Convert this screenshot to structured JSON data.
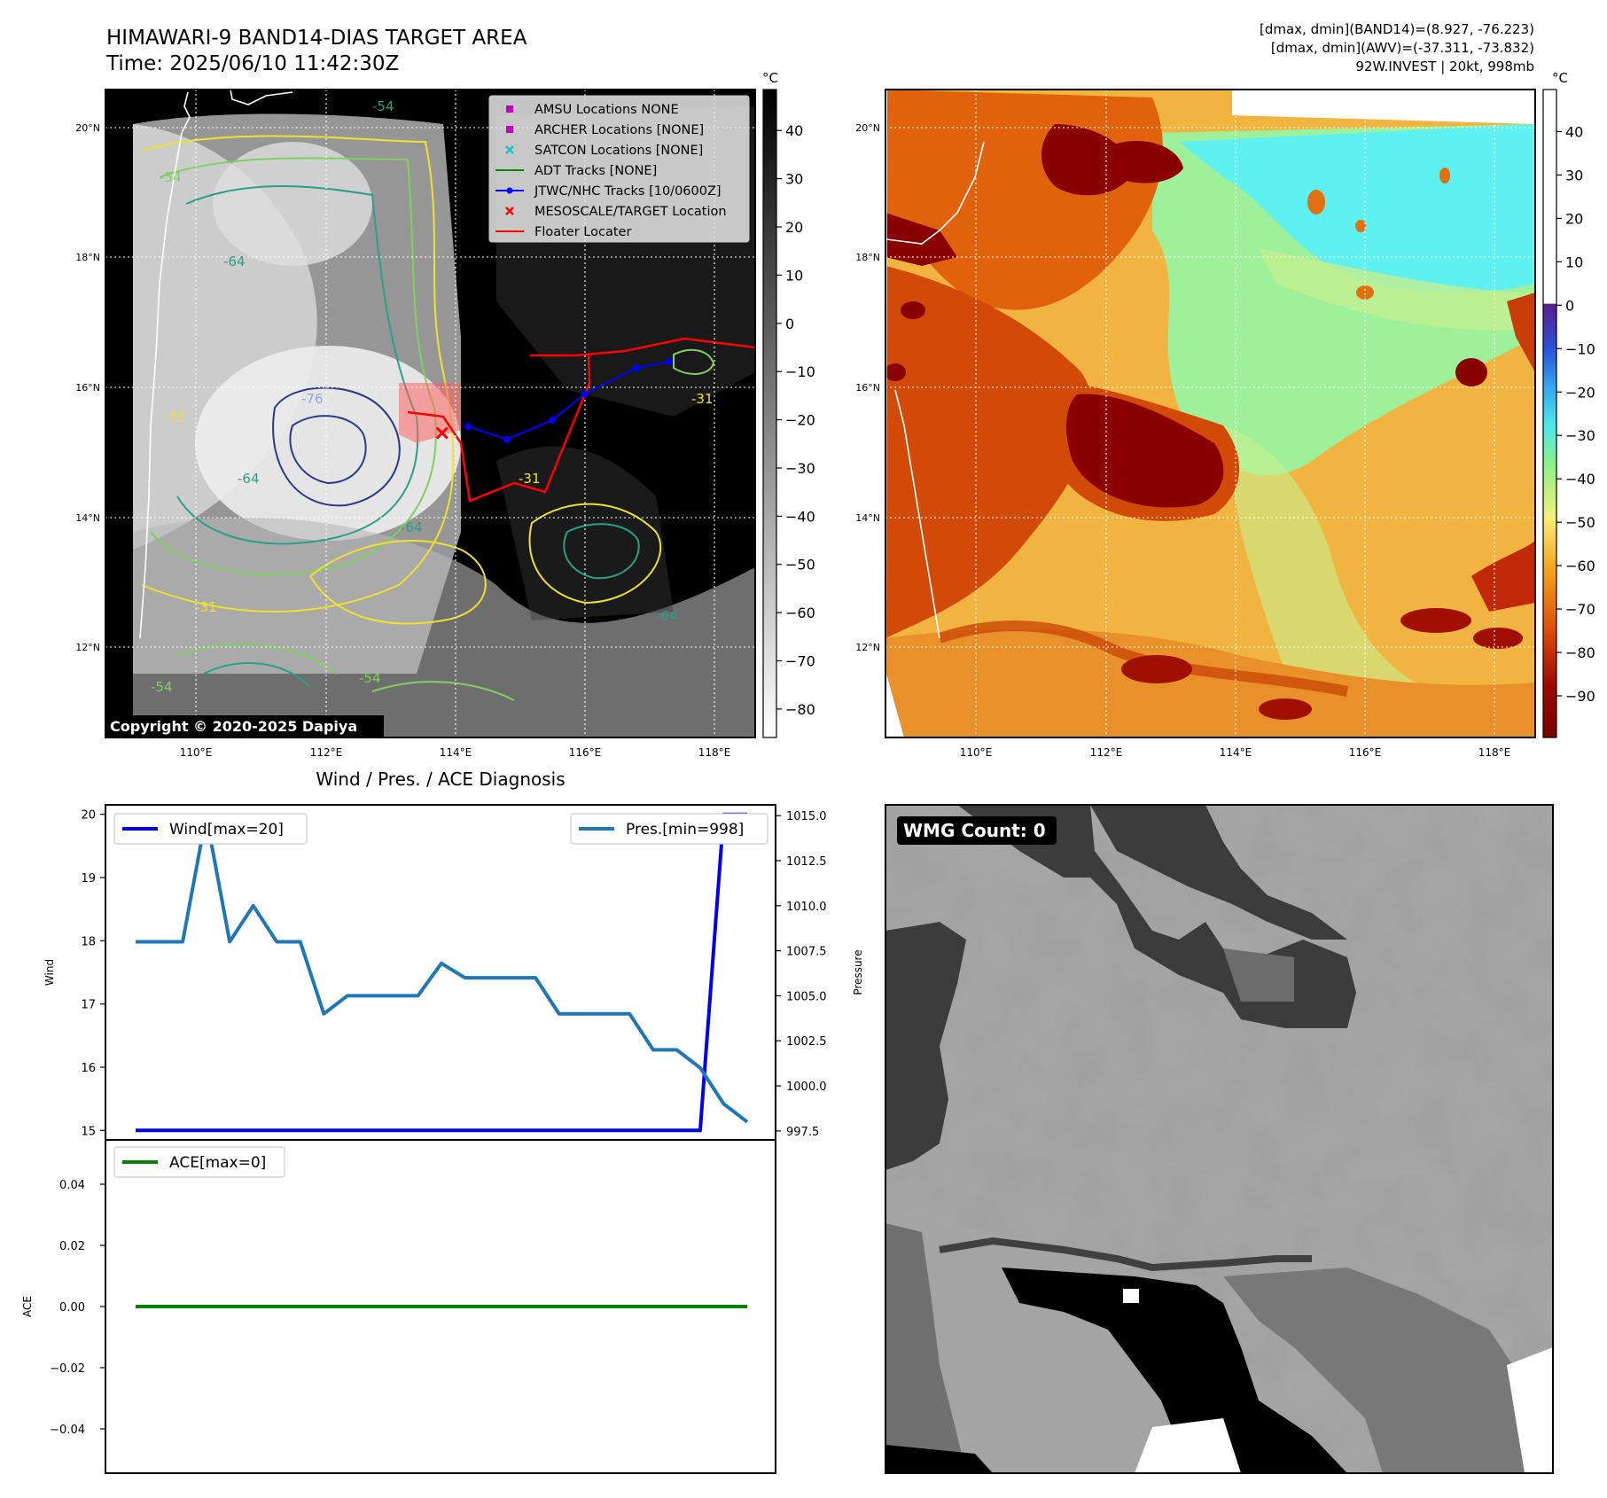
{
  "header": {
    "title_line1": "HIMAWARI-9 BAND14-DIAS TARGET AREA",
    "title_line2": "Time: 2025/06/10 11:42:30Z",
    "info_line1": "[dmax, dmin](BAND14)=(8.927, -76.223)",
    "info_line2": "[dmax, dmin](AWV)=(-37.311, -73.832)",
    "info_line3": "92W.INVEST | 20kt, 998mb"
  },
  "map_axes": {
    "lon_ticks": [
      "110°E",
      "112°E",
      "114°E",
      "116°E",
      "118°E"
    ],
    "lat_ticks": [
      "20°N",
      "18°N",
      "16°N",
      "14°N",
      "12°N"
    ]
  },
  "colorbar_ir": {
    "unit": "°C",
    "ticks": [
      "40",
      "30",
      "20",
      "10",
      "0",
      "−10",
      "−20",
      "−30",
      "−40",
      "−50",
      "−60",
      "−70",
      "−80"
    ]
  },
  "colorbar_wv": {
    "unit": "°C",
    "ticks": [
      "40",
      "30",
      "20",
      "10",
      "0",
      "−10",
      "−20",
      "−30",
      "−40",
      "−50",
      "−60",
      "−70",
      "−80",
      "−90"
    ]
  },
  "legend": [
    {
      "label": "AMSU Locations NONE",
      "marker": "square",
      "color": "#c000c0"
    },
    {
      "label": "ARCHER Locations [NONE]",
      "marker": "square",
      "color": "#c000c0"
    },
    {
      "label": "SATCON Locations [NONE]",
      "marker": "x",
      "color": "#20c0c0"
    },
    {
      "label": "ADT Tracks [NONE]",
      "marker": "line",
      "color": "#008000"
    },
    {
      "label": "JTWC/NHC Tracks [10/0600Z]",
      "marker": "line-dot",
      "color": "#0000ff"
    },
    {
      "label": "MESOSCALE/TARGET Location",
      "marker": "x",
      "color": "#ff0000"
    },
    {
      "label": "Floater Locater",
      "marker": "line",
      "color": "#ff0000"
    }
  ],
  "contour_labels": [
    "-64",
    "-54",
    "-31",
    "-76"
  ],
  "copyright": "Copyright © 2020-2025 Dapiya",
  "jtwc_track": {
    "lon": [
      114.2,
      114.8,
      115.5,
      116.0,
      116.8,
      117.3
    ],
    "lat": [
      15.4,
      15.2,
      15.5,
      15.9,
      16.3,
      16.4
    ]
  },
  "target_location": {
    "lon": 113.8,
    "lat": 15.3
  },
  "diag": {
    "title": "Wind / Pres. / ACE Diagnosis",
    "wind_label": "Wind",
    "pres_label": "Pressure",
    "ace_label": "ACE",
    "wind_legend": "Wind[max=20]",
    "pres_legend": "Pres.[min=998]",
    "ace_legend": "ACE[max=0]",
    "wind_ticks": [
      "20",
      "19",
      "18",
      "17",
      "16",
      "15"
    ],
    "pres_ticks": [
      "1015.0",
      "1012.5",
      "1010.0",
      "1007.5",
      "1005.0",
      "1002.5",
      "1000.0",
      "997.5"
    ],
    "ace_ticks": [
      "0.04",
      "0.02",
      "0.00",
      "−0.02",
      "−0.04"
    ]
  },
  "chart_data": [
    {
      "type": "line",
      "series": [
        {
          "name": "Wind[max=20]",
          "axis": "left",
          "color": "#0000ee",
          "values": [
            15,
            15,
            15,
            15,
            15,
            15,
            15,
            15,
            15,
            15,
            15,
            15,
            15,
            15,
            15,
            15,
            15,
            15,
            15,
            15,
            15,
            15,
            15,
            15,
            15,
            20,
            20
          ]
        },
        {
          "name": "Pres.[min=998]",
          "axis": "right",
          "color": "#1f77b4",
          "values": [
            1008,
            1008,
            1008,
            1015,
            1008,
            1010,
            1008,
            1008,
            1004,
            1005,
            1005,
            1005,
            1005,
            1006.8,
            1006,
            1006,
            1006,
            1006,
            1004,
            1004,
            1004,
            1004,
            1002,
            1002,
            1001,
            999,
            998
          ]
        }
      ],
      "x": [
        0,
        1,
        2,
        3,
        4,
        5,
        6,
        7,
        8,
        9,
        10,
        11,
        12,
        13,
        14,
        15,
        16,
        17,
        18,
        19,
        20,
        21,
        22,
        23,
        24,
        25,
        26
      ],
      "ylim_left": [
        14.85,
        20.15
      ],
      "ylim_right": [
        997,
        1015.6
      ],
      "ylabel": "Wind",
      "y2label": "Pressure"
    },
    {
      "type": "line",
      "series": [
        {
          "name": "ACE[max=0]",
          "color": "#008000",
          "values": [
            0,
            0,
            0,
            0,
            0,
            0,
            0,
            0,
            0,
            0,
            0,
            0,
            0,
            0,
            0,
            0,
            0,
            0,
            0,
            0,
            0,
            0,
            0,
            0,
            0,
            0,
            0
          ]
        }
      ],
      "x": [
        0,
        1,
        2,
        3,
        4,
        5,
        6,
        7,
        8,
        9,
        10,
        11,
        12,
        13,
        14,
        15,
        16,
        17,
        18,
        19,
        20,
        21,
        22,
        23,
        24,
        25,
        26
      ],
      "ylim": [
        -0.0545,
        0.0545
      ],
      "ylabel": "ACE"
    }
  ],
  "wmg": {
    "label": "WMG Count: 0"
  }
}
